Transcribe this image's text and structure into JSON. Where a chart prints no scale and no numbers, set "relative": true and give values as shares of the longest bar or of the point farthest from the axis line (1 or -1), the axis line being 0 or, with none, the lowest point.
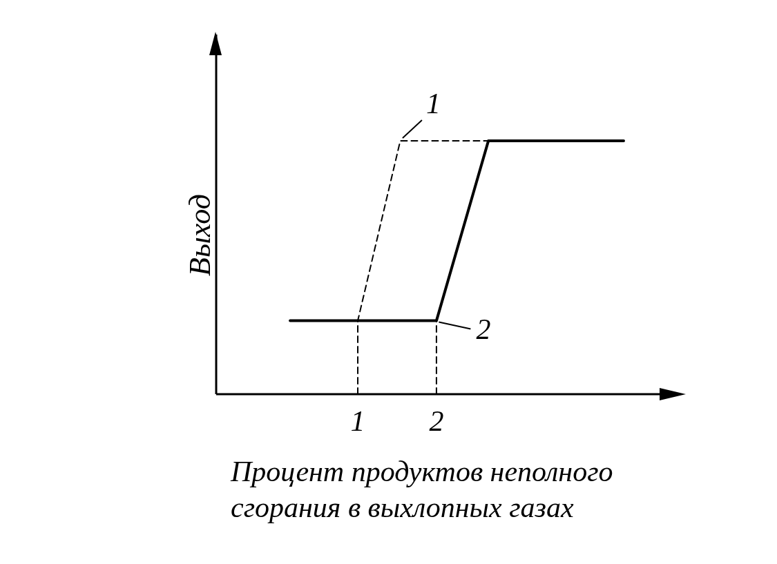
{
  "chart_data": {
    "type": "line",
    "relative": true,
    "xlabel": "Процент продуктов неполного\nсгорания в выхлопных газах",
    "ylabel": "Выход",
    "xlim": [
      -0.8,
      5.1
    ],
    "xticks": [
      {
        "value": 1,
        "label": "1"
      },
      {
        "value": 2,
        "label": "2"
      }
    ],
    "marker": "none",
    "series": [
      {
        "name": "1",
        "color": "#000000",
        "line_style": "dashed",
        "x": [
          1,
          1,
          1.54,
          2.66
        ],
        "values": [
          0,
          0.29,
          1,
          1
        ]
      },
      {
        "name": "2",
        "color": "#000000",
        "line_style": "solid",
        "x": [
          0.14,
          2,
          2.66,
          4.38
        ],
        "values": [
          0.29,
          0.29,
          1,
          1
        ]
      },
      {
        "color": "#000000",
        "line_style": "dashed",
        "x": [
          2,
          2
        ],
        "values": [
          0,
          0.29
        ]
      }
    ]
  }
}
